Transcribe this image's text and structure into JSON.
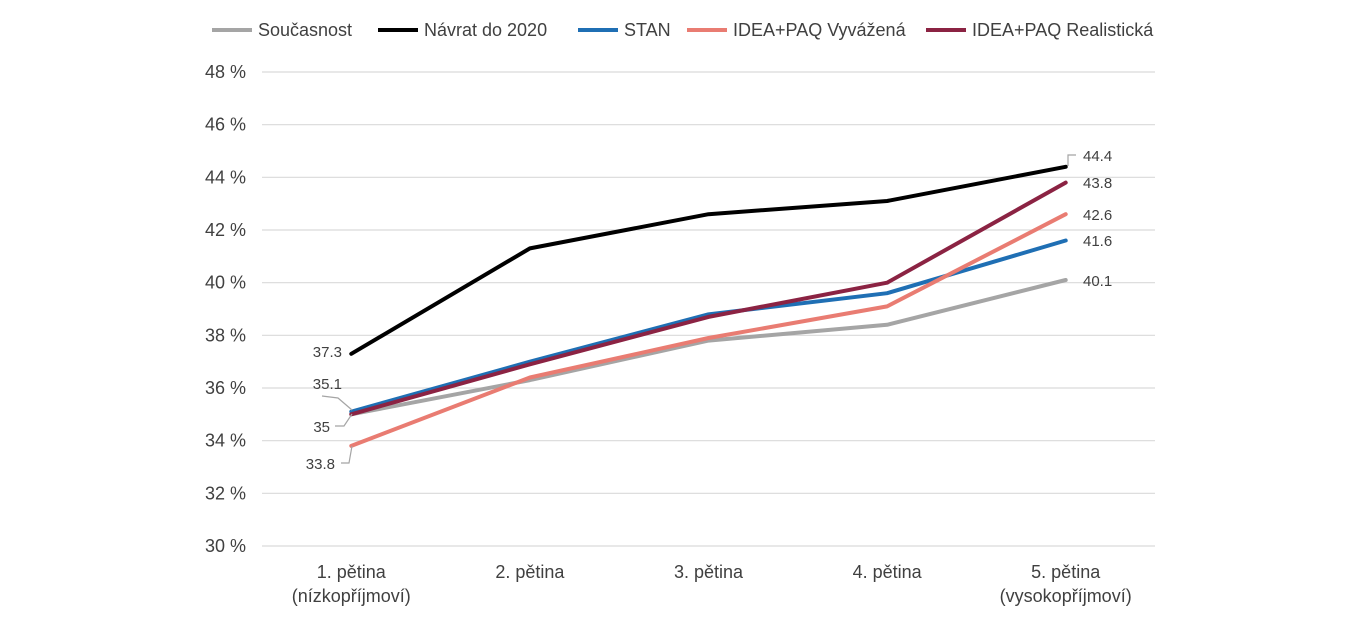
{
  "chart_data": {
    "type": "line",
    "categories": [
      [
        "1. pětina",
        "(nízkopříjmoví)"
      ],
      [
        "2. pětina"
      ],
      [
        "3. pětina"
      ],
      [
        "4. pětina"
      ],
      [
        "5. pětina",
        "(vysokopříjmoví)"
      ]
    ],
    "ylim": [
      30,
      48
    ],
    "yticks": [
      30,
      32,
      34,
      36,
      38,
      40,
      42,
      44,
      46,
      48
    ],
    "y_tick_suffix": " %",
    "grid": true,
    "legend_position": "top",
    "series": [
      {
        "name": "Současnost",
        "color": "#a5a5a5",
        "values": [
          35.0,
          36.3,
          37.8,
          38.4,
          40.1
        ],
        "first_label": "",
        "last_label": "40.1"
      },
      {
        "name": "Návrat do 2020",
        "color": "#000000",
        "values": [
          37.3,
          41.3,
          42.6,
          43.1,
          44.4
        ],
        "first_label": "37.3",
        "last_label": "44.4"
      },
      {
        "name": "STAN",
        "color": "#1f6fb4",
        "values": [
          35.1,
          37.0,
          38.8,
          39.6,
          41.6
        ],
        "first_label": "35.1",
        "last_label": "41.6"
      },
      {
        "name": "IDEA+PAQ Vyvážená",
        "color": "#e97c72",
        "values": [
          33.8,
          36.4,
          37.9,
          39.1,
          42.6
        ],
        "first_label": "33.8",
        "last_label": "42.6"
      },
      {
        "name": "IDEA+PAQ Realistická",
        "color": "#8b2343",
        "values": [
          35.0,
          36.9,
          38.7,
          40.0,
          43.8
        ],
        "first_label": "35",
        "last_label": "43.8"
      }
    ]
  }
}
